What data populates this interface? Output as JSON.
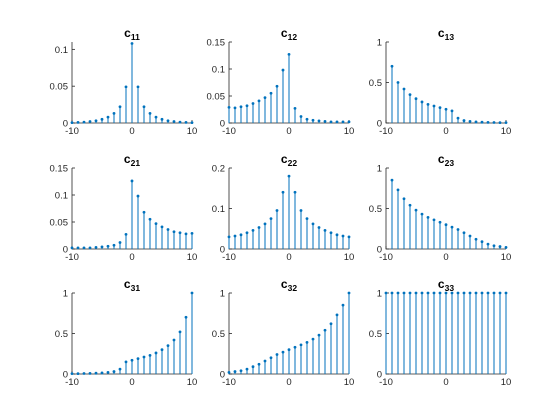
{
  "colors": {
    "stem": "#0072bd",
    "axis": "#262626"
  },
  "chart_data": [
    {
      "type": "stem",
      "title": "c",
      "title_sub": "11",
      "x": [
        -10,
        -9,
        -8,
        -7,
        -6,
        -5,
        -4,
        -3,
        -2,
        -1,
        0,
        1,
        2,
        3,
        4,
        5,
        6,
        7,
        8,
        9,
        10
      ],
      "values": [
        0.0005,
        0.0008,
        0.0012,
        0.002,
        0.003,
        0.005,
        0.008,
        0.013,
        0.022,
        0.049,
        0.108,
        0.049,
        0.022,
        0.013,
        0.008,
        0.005,
        0.003,
        0.002,
        0.0012,
        0.0008,
        0.0005
      ],
      "xlim": [
        -10,
        10
      ],
      "ylim": [
        0,
        0.11
      ],
      "xticks": [
        -10,
        0,
        10
      ],
      "xtick_labels": [
        "-10",
        "0",
        "10"
      ],
      "yticks": [
        0,
        0.05,
        0.1
      ],
      "ytick_labels": [
        "0",
        "0.05",
        "0.1"
      ]
    },
    {
      "type": "stem",
      "title": "c",
      "title_sub": "12",
      "x": [
        -10,
        -9,
        -8,
        -7,
        -6,
        -5,
        -4,
        -3,
        -2,
        -1,
        0,
        1,
        2,
        3,
        4,
        5,
        6,
        7,
        8,
        9,
        10
      ],
      "values": [
        0.029,
        0.028,
        0.03,
        0.032,
        0.036,
        0.041,
        0.047,
        0.055,
        0.068,
        0.098,
        0.127,
        0.027,
        0.012,
        0.007,
        0.005,
        0.004,
        0.003,
        0.002,
        0.002,
        0.002,
        0.002
      ],
      "xlim": [
        -10,
        10
      ],
      "ylim": [
        0,
        0.15
      ],
      "xticks": [
        -10,
        0,
        10
      ],
      "xtick_labels": [
        "-10",
        "0",
        "10"
      ],
      "yticks": [
        0,
        0.05,
        0.1,
        0.15
      ],
      "ytick_labels": [
        "0",
        "0.05",
        "0.1",
        "0.15"
      ]
    },
    {
      "type": "stem",
      "title": "c",
      "title_sub": "13",
      "x": [
        -9,
        -8,
        -7,
        -6,
        -5,
        -4,
        -3,
        -2,
        -1,
        0,
        1,
        2,
        3,
        4,
        5,
        6,
        7,
        8,
        9,
        10
      ],
      "values": [
        0.7,
        0.5,
        0.42,
        0.35,
        0.3,
        0.26,
        0.23,
        0.21,
        0.19,
        0.17,
        0.15,
        0.06,
        0.03,
        0.02,
        0.013,
        0.01,
        0.008,
        0.006,
        0.005,
        0.004
      ],
      "xlim": [
        -10,
        10
      ],
      "ylim": [
        0,
        1
      ],
      "xticks": [
        -10,
        0,
        10
      ],
      "xtick_labels": [
        "-10",
        "0",
        "10"
      ],
      "yticks": [
        0,
        0.5,
        1
      ],
      "ytick_labels": [
        "0",
        "0.5",
        "1"
      ]
    },
    {
      "type": "stem",
      "title": "c",
      "title_sub": "21",
      "x": [
        -10,
        -9,
        -8,
        -7,
        -6,
        -5,
        -4,
        -3,
        -2,
        -1,
        0,
        1,
        2,
        3,
        4,
        5,
        6,
        7,
        8,
        9,
        10
      ],
      "values": [
        0.002,
        0.002,
        0.002,
        0.002,
        0.003,
        0.004,
        0.005,
        0.007,
        0.012,
        0.027,
        0.126,
        0.098,
        0.068,
        0.055,
        0.047,
        0.041,
        0.036,
        0.032,
        0.03,
        0.028,
        0.029
      ],
      "xlim": [
        -10,
        10
      ],
      "ylim": [
        0,
        0.15
      ],
      "xticks": [
        -10,
        0,
        10
      ],
      "xtick_labels": [
        "-10",
        "0",
        "10"
      ],
      "yticks": [
        0,
        0.05,
        0.1,
        0.15
      ],
      "ytick_labels": [
        "0",
        "0.05",
        "0.1",
        "0.15"
      ]
    },
    {
      "type": "stem",
      "title": "c",
      "title_sub": "22",
      "x": [
        -10,
        -9,
        -8,
        -7,
        -6,
        -5,
        -4,
        -3,
        -2,
        -1,
        0,
        1,
        2,
        3,
        4,
        5,
        6,
        7,
        8,
        9,
        10
      ],
      "values": [
        0.03,
        0.032,
        0.035,
        0.04,
        0.046,
        0.053,
        0.062,
        0.075,
        0.095,
        0.14,
        0.18,
        0.14,
        0.095,
        0.075,
        0.062,
        0.053,
        0.046,
        0.04,
        0.035,
        0.032,
        0.03
      ],
      "xlim": [
        -10,
        10
      ],
      "ylim": [
        0,
        0.2
      ],
      "xticks": [
        -10,
        0,
        10
      ],
      "xtick_labels": [
        "-10",
        "0",
        "10"
      ],
      "yticks": [
        0,
        0.1,
        0.2
      ],
      "ytick_labels": [
        "0",
        "0.1",
        "0.2"
      ]
    },
    {
      "type": "stem",
      "title": "c",
      "title_sub": "23",
      "x": [
        -9,
        -8,
        -7,
        -6,
        -5,
        -4,
        -3,
        -2,
        -1,
        0,
        1,
        2,
        3,
        4,
        5,
        6,
        7,
        8,
        9,
        10
      ],
      "values": [
        0.85,
        0.73,
        0.62,
        0.54,
        0.48,
        0.43,
        0.39,
        0.36,
        0.33,
        0.3,
        0.27,
        0.24,
        0.2,
        0.16,
        0.12,
        0.09,
        0.06,
        0.04,
        0.03,
        0.02
      ],
      "xlim": [
        -10,
        10
      ],
      "ylim": [
        0,
        1
      ],
      "xticks": [
        -10,
        0,
        10
      ],
      "xtick_labels": [
        "-10",
        "0",
        "10"
      ],
      "yticks": [
        0,
        0.5,
        1
      ],
      "ytick_labels": [
        "0",
        "0.5",
        "1"
      ]
    },
    {
      "type": "stem",
      "title": "c",
      "title_sub": "31",
      "x": [
        -10,
        -9,
        -8,
        -7,
        -6,
        -5,
        -4,
        -3,
        -2,
        -1,
        0,
        1,
        2,
        3,
        4,
        5,
        6,
        7,
        8,
        9,
        10
      ],
      "values": [
        0.004,
        0.005,
        0.006,
        0.008,
        0.01,
        0.013,
        0.02,
        0.03,
        0.06,
        0.15,
        0.17,
        0.19,
        0.21,
        0.23,
        0.26,
        0.3,
        0.35,
        0.42,
        0.52,
        0.7,
        1.0
      ],
      "xlim": [
        -10,
        10
      ],
      "ylim": [
        0,
        1
      ],
      "xticks": [
        -10,
        0,
        10
      ],
      "xtick_labels": [
        "-10",
        "0",
        "10"
      ],
      "yticks": [
        0,
        0.5,
        1
      ],
      "ytick_labels": [
        "0",
        "0.5",
        "1"
      ]
    },
    {
      "type": "stem",
      "title": "c",
      "title_sub": "32",
      "x": [
        -10,
        -9,
        -8,
        -7,
        -6,
        -5,
        -4,
        -3,
        -2,
        -1,
        0,
        1,
        2,
        3,
        4,
        5,
        6,
        7,
        8,
        9,
        10
      ],
      "values": [
        0.02,
        0.03,
        0.04,
        0.06,
        0.09,
        0.12,
        0.16,
        0.2,
        0.24,
        0.27,
        0.3,
        0.33,
        0.36,
        0.39,
        0.43,
        0.48,
        0.54,
        0.62,
        0.73,
        0.85,
        1.0
      ],
      "xlim": [
        -10,
        10
      ],
      "ylim": [
        0,
        1
      ],
      "xticks": [
        -10,
        0,
        10
      ],
      "xtick_labels": [
        "-10",
        "0",
        "10"
      ],
      "yticks": [
        0,
        0.5,
        1
      ],
      "ytick_labels": [
        "0",
        "0.5",
        "1"
      ]
    },
    {
      "type": "stem",
      "title": "c",
      "title_sub": "33",
      "x": [
        -10,
        -9,
        -8,
        -7,
        -6,
        -5,
        -4,
        -3,
        -2,
        -1,
        0,
        1,
        2,
        3,
        4,
        5,
        6,
        7,
        8,
        9,
        10
      ],
      "values": [
        1,
        1,
        1,
        1,
        1,
        1,
        1,
        1,
        1,
        1,
        1,
        1,
        1,
        1,
        1,
        1,
        1,
        1,
        1,
        1,
        1
      ],
      "xlim": [
        -10,
        10
      ],
      "ylim": [
        0,
        1
      ],
      "xticks": [
        -10,
        0,
        10
      ],
      "xtick_labels": [
        "-10",
        "0",
        "10"
      ],
      "yticks": [
        0,
        0.5,
        1
      ],
      "ytick_labels": [
        "0",
        "0.5",
        "1"
      ]
    }
  ]
}
